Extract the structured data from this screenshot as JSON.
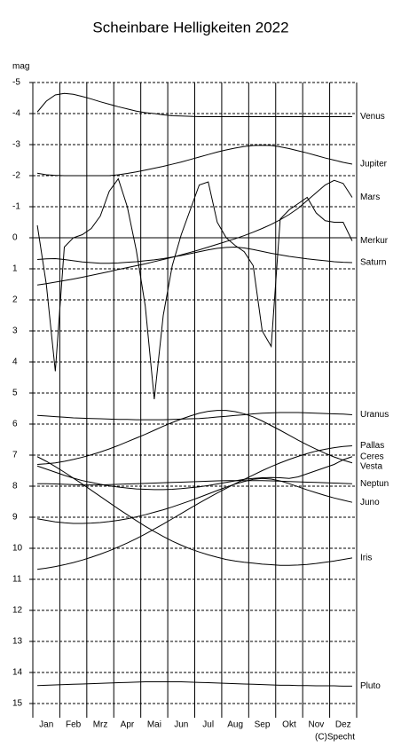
{
  "chart_data": {
    "type": "line",
    "title": "Scheinbare Helligkeiten 2022",
    "y_label": "mag",
    "credit": "(C)Specht",
    "categories": [
      null,
      "Jan",
      null,
      null,
      "Feb",
      null,
      null,
      "Mrz",
      null,
      null,
      "Apr",
      null,
      null,
      "Mai",
      null,
      null,
      "Jun",
      null,
      null,
      "Jul",
      null,
      null,
      "Aug",
      null,
      null,
      "Sep",
      null,
      null,
      "Okt",
      null,
      null,
      "Nov",
      null,
      null,
      "Dez",
      null
    ],
    "ylim": [
      15,
      -5
    ],
    "yticks": [
      -5,
      -4,
      -3,
      -2,
      -1,
      0,
      1,
      2,
      3,
      4,
      5,
      6,
      7,
      8,
      9,
      10,
      11,
      12,
      13,
      14,
      15
    ],
    "grid": true,
    "series": [
      {
        "name": "Venus",
        "color": "#000000",
        "values": [
          -4.05,
          -4.4,
          -4.6,
          -4.65,
          -4.62,
          -4.55,
          -4.47,
          -4.38,
          -4.3,
          -4.22,
          -4.15,
          -4.08,
          -4.03,
          -4.0,
          -3.96,
          -3.93,
          -3.92,
          -3.91,
          -3.9,
          -3.9,
          -3.9,
          -3.9,
          -3.9,
          -3.9,
          -3.9,
          -3.9,
          -3.9,
          -3.9,
          -3.9,
          -3.9,
          -3.9,
          -3.9,
          -3.9,
          -3.9,
          -3.9,
          -3.9
        ]
      },
      {
        "name": "Jupiter",
        "color": "#000000",
        "values": [
          -2.08,
          -2.03,
          -2.01,
          -2.0,
          -2.0,
          -2.0,
          -2.0,
          -2.0,
          -2.0,
          -2.03,
          -2.07,
          -2.12,
          -2.18,
          -2.24,
          -2.3,
          -2.37,
          -2.44,
          -2.52,
          -2.6,
          -2.68,
          -2.76,
          -2.83,
          -2.89,
          -2.94,
          -2.97,
          -2.98,
          -2.97,
          -2.93,
          -2.87,
          -2.8,
          -2.73,
          -2.65,
          -2.57,
          -2.5,
          -2.43,
          -2.37
        ]
      },
      {
        "name": "Mars",
        "color": "#000000",
        "values": [
          1.52,
          1.48,
          1.43,
          1.38,
          1.33,
          1.27,
          1.21,
          1.15,
          1.09,
          1.02,
          0.96,
          0.9,
          0.84,
          0.77,
          0.7,
          0.63,
          0.55,
          0.47,
          0.39,
          0.3,
          0.21,
          0.12,
          0.03,
          -0.07,
          -0.18,
          -0.3,
          -0.43,
          -0.58,
          -0.75,
          -0.95,
          -1.2,
          -1.45,
          -1.7,
          -1.85,
          -1.75,
          -1.3
        ]
      },
      {
        "name": "Merkur",
        "color": "#000000",
        "values": [
          -0.4,
          1.5,
          4.3,
          0.3,
          0.0,
          -0.1,
          -0.3,
          -0.7,
          -1.5,
          -1.9,
          -1.0,
          0.4,
          2.2,
          5.2,
          2.5,
          0.9,
          -0.1,
          -0.9,
          -1.7,
          -1.8,
          -0.5,
          0.0,
          0.25,
          0.45,
          0.9,
          3.0,
          3.5,
          -0.6,
          -0.9,
          -1.1,
          -1.3,
          -0.8,
          -0.55,
          -0.5,
          -0.5,
          0.1
        ]
      },
      {
        "name": "Saturn",
        "color": "#000000",
        "values": [
          0.7,
          0.68,
          0.67,
          0.7,
          0.74,
          0.78,
          0.8,
          0.82,
          0.82,
          0.81,
          0.79,
          0.77,
          0.74,
          0.71,
          0.67,
          0.62,
          0.57,
          0.51,
          0.45,
          0.39,
          0.34,
          0.31,
          0.3,
          0.33,
          0.38,
          0.44,
          0.5,
          0.55,
          0.6,
          0.64,
          0.68,
          0.71,
          0.74,
          0.77,
          0.79,
          0.8
        ]
      },
      {
        "name": "Uranus",
        "color": "#000000",
        "values": [
          5.72,
          5.74,
          5.76,
          5.78,
          5.8,
          5.81,
          5.82,
          5.83,
          5.84,
          5.85,
          5.85,
          5.86,
          5.86,
          5.86,
          5.86,
          5.85,
          5.84,
          5.83,
          5.82,
          5.8,
          5.77,
          5.75,
          5.72,
          5.7,
          5.67,
          5.65,
          5.64,
          5.63,
          5.63,
          5.63,
          5.64,
          5.65,
          5.66,
          5.67,
          5.68,
          5.7
        ]
      },
      {
        "name": "Pallas",
        "color": "#000000",
        "values": [
          10.68,
          10.64,
          10.59,
          10.53,
          10.46,
          10.38,
          10.29,
          10.19,
          10.08,
          9.96,
          9.83,
          9.69,
          9.54,
          9.38,
          9.22,
          9.05,
          8.88,
          8.71,
          8.54,
          8.38,
          8.22,
          8.07,
          7.92,
          7.78,
          7.64,
          7.5,
          7.37,
          7.25,
          7.14,
          7.04,
          6.95,
          6.87,
          6.81,
          6.76,
          6.72,
          6.7
        ]
      },
      {
        "name": "Ceres",
        "color": "#000000",
        "values": [
          7.35,
          7.45,
          7.55,
          7.65,
          7.74,
          7.82,
          7.88,
          7.94,
          7.99,
          8.03,
          8.06,
          8.09,
          8.1,
          8.11,
          8.11,
          8.1,
          8.08,
          8.05,
          8.02,
          7.98,
          7.93,
          7.88,
          7.83,
          7.78,
          7.75,
          7.73,
          7.72,
          7.73,
          7.75,
          7.7,
          7.6,
          7.5,
          7.4,
          7.3,
          7.15,
          7.05
        ]
      },
      {
        "name": "Vesta",
        "color": "#000000",
        "values": [
          7.3,
          7.28,
          7.25,
          7.2,
          7.14,
          7.07,
          6.99,
          6.9,
          6.8,
          6.69,
          6.57,
          6.45,
          6.33,
          6.2,
          6.07,
          5.95,
          5.84,
          5.74,
          5.65,
          5.59,
          5.56,
          5.56,
          5.6,
          5.67,
          5.77,
          5.9,
          6.05,
          6.2,
          6.36,
          6.52,
          6.67,
          6.81,
          6.94,
          7.06,
          7.16,
          7.25
        ]
      },
      {
        "name": "Neptun",
        "color": "#000000",
        "values": [
          7.92,
          7.92,
          7.93,
          7.94,
          7.95,
          7.96,
          7.96,
          7.96,
          7.95,
          7.94,
          7.93,
          7.92,
          7.91,
          7.9,
          7.89,
          7.88,
          7.87,
          7.86,
          7.85,
          7.84,
          7.83,
          7.82,
          7.82,
          7.82,
          7.82,
          7.82,
          7.83,
          7.84,
          7.85,
          7.86,
          7.87,
          7.88,
          7.89,
          7.9,
          7.91,
          7.92
        ]
      },
      {
        "name": "Juno",
        "color": "#000000",
        "values": [
          9.05,
          9.1,
          9.15,
          9.18,
          9.2,
          9.2,
          9.19,
          9.17,
          9.14,
          9.1,
          9.05,
          8.99,
          8.92,
          8.84,
          8.76,
          8.67,
          8.57,
          8.47,
          8.36,
          8.25,
          8.14,
          8.03,
          7.93,
          7.85,
          7.78,
          7.75,
          7.77,
          7.83,
          7.92,
          8.02,
          8.12,
          8.21,
          8.3,
          8.38,
          8.45,
          8.52
        ]
      },
      {
        "name": "Iris",
        "color": "#000000",
        "values": [
          7.05,
          7.2,
          7.37,
          7.55,
          7.74,
          7.93,
          8.13,
          8.33,
          8.53,
          8.73,
          8.92,
          9.11,
          9.29,
          9.46,
          9.62,
          9.77,
          9.9,
          10.02,
          10.12,
          10.21,
          10.29,
          10.36,
          10.41,
          10.45,
          10.48,
          10.51,
          10.53,
          10.55,
          10.55,
          10.54,
          10.52,
          10.49,
          10.45,
          10.41,
          10.36,
          10.31
        ]
      },
      {
        "name": "Pluto",
        "color": "#000000",
        "values": [
          14.42,
          14.41,
          14.4,
          14.39,
          14.38,
          14.37,
          14.36,
          14.35,
          14.34,
          14.33,
          14.32,
          14.31,
          14.3,
          14.3,
          14.3,
          14.3,
          14.3,
          14.31,
          14.32,
          14.33,
          14.34,
          14.35,
          14.36,
          14.37,
          14.38,
          14.39,
          14.4,
          14.41,
          14.41,
          14.42,
          14.42,
          14.43,
          14.43,
          14.43,
          14.44,
          14.44
        ]
      }
    ]
  }
}
